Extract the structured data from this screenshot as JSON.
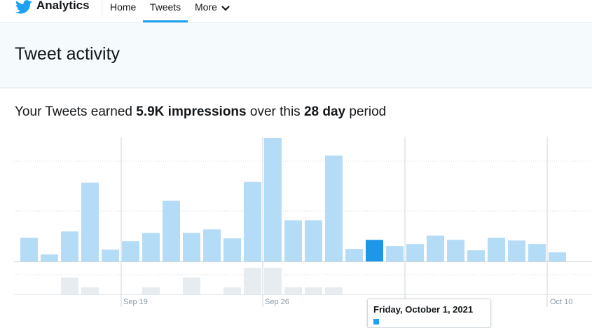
{
  "nav": {
    "brand": "Analytics",
    "items": [
      {
        "label": "Home"
      },
      {
        "label": "Tweets",
        "active": true
      },
      {
        "label": "More"
      }
    ]
  },
  "header": {
    "title": "Tweet activity"
  },
  "summary": {
    "prefix": "Your Tweets earned ",
    "impressions": "5.9K impressions",
    "middle": " over this ",
    "period": "28 day",
    "suffix": " period"
  },
  "colors": {
    "accent": "#1da1f2",
    "bar": "#b5dcf7",
    "bar_selected": "#1f97e8",
    "bar_secondary": "#e6ecf0"
  },
  "tooltip": {
    "title": "Friday, October 1, 2021"
  },
  "chart_data": {
    "type": "bar",
    "x_tick_labels": [
      "Sep 19",
      "Sep 26",
      "Oct 10"
    ],
    "selected_index": 17,
    "series": [
      {
        "values": [
          34,
          10,
          43,
          113,
          17,
          29,
          41,
          87,
          41,
          46,
          33,
          114,
          177,
          59,
          59,
          152,
          18,
          31,
          22,
          25,
          37,
          31,
          16,
          34,
          30,
          25,
          13
        ]
      },
      {
        "values": [
          0,
          0,
          24,
          10,
          0,
          0,
          10,
          0,
          24,
          0,
          10,
          38,
          38,
          10,
          10,
          10,
          0,
          0,
          0,
          0,
          0,
          0,
          0,
          0,
          0,
          0,
          0
        ]
      }
    ]
  }
}
